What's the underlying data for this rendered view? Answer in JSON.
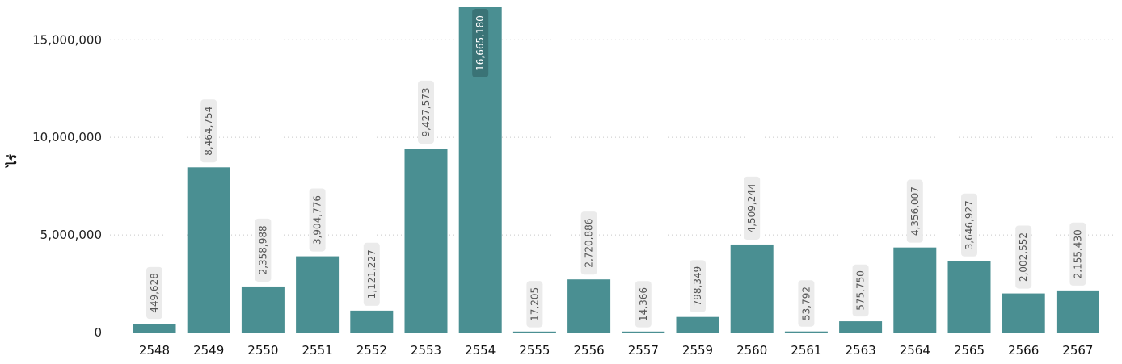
{
  "chart_data": {
    "type": "bar",
    "title": "",
    "xlabel": "",
    "ylabel": "ไร่",
    "ylim": [
      0,
      16665180
    ],
    "yticks": [
      0,
      5000000,
      10000000,
      15000000
    ],
    "ytick_labels": [
      "0",
      "5,000,000",
      "10,000,000",
      "15,000,000"
    ],
    "grid": true,
    "bar_color": "#4a8f92",
    "label_bg": "#ebebeb",
    "label_color": "#555555",
    "highlight_label_bg": "#3a7376",
    "highlight_label_color": "#ffffff",
    "categories": [
      "2548",
      "2549",
      "2550",
      "2551",
      "2552",
      "2553",
      "2554",
      "2555",
      "2556",
      "2557",
      "2559",
      "2560",
      "2561",
      "2563",
      "2564",
      "2565",
      "2566",
      "2567"
    ],
    "values": [
      449628,
      8464754,
      2358988,
      3904776,
      1121227,
      9427573,
      16665180,
      17205,
      2720886,
      14366,
      798349,
      4509244,
      53792,
      575750,
      4356007,
      3646927,
      2002552,
      2155430
    ],
    "data_labels": [
      "449,628",
      "8,464,754",
      "2,358,988",
      "3,904,776",
      "1,121,227",
      "9,427,573",
      "16,665,180",
      "17,205",
      "2,720,886",
      "14,366",
      "798,349",
      "4,509,244",
      "53,792",
      "575,750",
      "4,356,007",
      "3,646,927",
      "2,002,552",
      "2,155,430"
    ]
  }
}
